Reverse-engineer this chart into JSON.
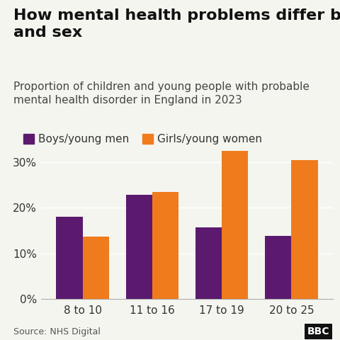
{
  "title": "How mental health problems differ by age\nand sex",
  "subtitle": "Proportion of children and young people with probable\nmental health disorder in England in 2023",
  "source": "Source: NHS Digital",
  "categories": [
    "8 to 10",
    "11 to 16",
    "17 to 19",
    "20 to 25"
  ],
  "boys_values": [
    18.0,
    22.9,
    15.7,
    13.8
  ],
  "girls_values": [
    13.7,
    23.5,
    32.5,
    30.5
  ],
  "boys_color": "#5b1a6e",
  "girls_color": "#f07b1d",
  "legend_boys": "Boys/young men",
  "legend_girls": "Girls/young women",
  "ylim": [
    0,
    35
  ],
  "yticks": [
    0,
    10,
    20,
    30
  ],
  "ytick_labels": [
    "0%",
    "10%",
    "20%",
    "30%"
  ],
  "background_color": "#f5f5f0",
  "title_fontsize": 16,
  "subtitle_fontsize": 11,
  "legend_fontsize": 11,
  "axis_fontsize": 11,
  "source_fontsize": 9,
  "bar_width": 0.38,
  "bbc_logo": "BBC"
}
